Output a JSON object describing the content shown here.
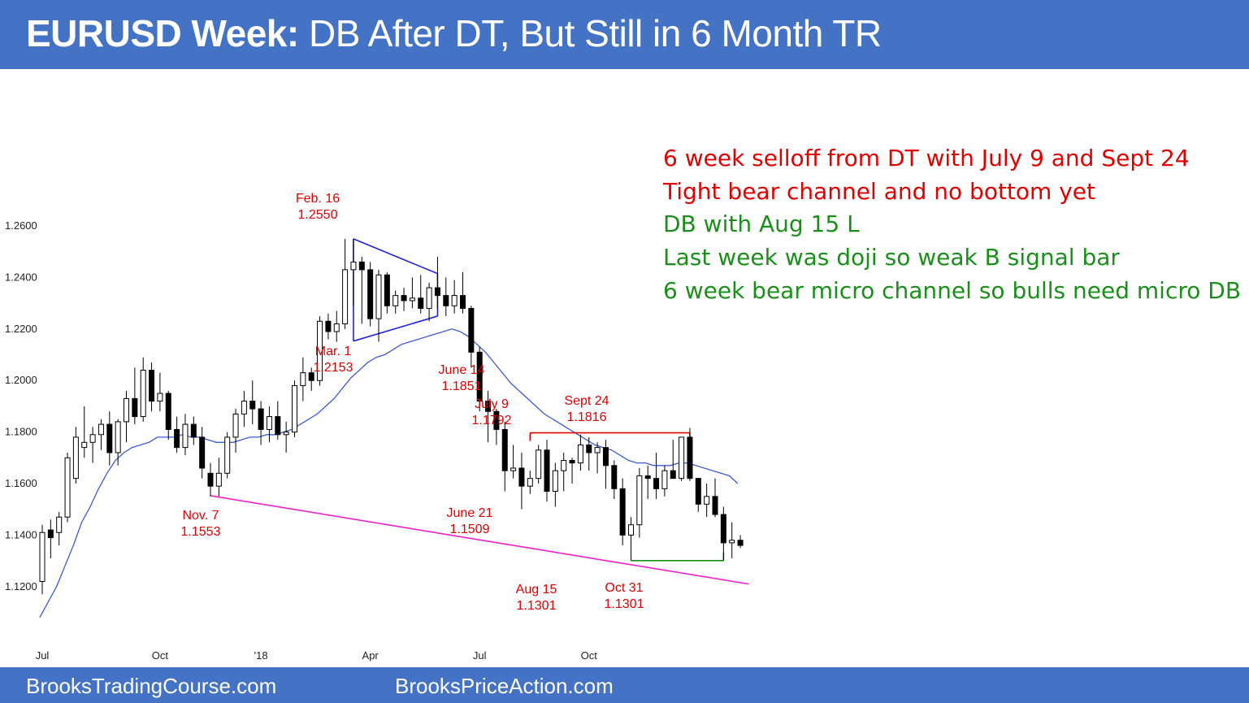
{
  "title": {
    "bold": "EURUSD Week:",
    "rest": " DB After DT, But Still in 6 Month TR"
  },
  "footer": {
    "left": "BrooksTradingCourse.com",
    "right": "BrooksPriceAction.com"
  },
  "colors": {
    "title_bar": "#4472c4",
    "red_text": "#e00000",
    "green_text": "#1a8f1a",
    "ema": "#3d5bd9",
    "wedge": "#2222dd",
    "trendline": "#ee22cc",
    "dt_line": "#e00000",
    "db_line": "#1a8f1a"
  },
  "notes": [
    {
      "text": "6 week selloff from DT with July 9 and Sept 24",
      "color": "red"
    },
    {
      "text": "Tight bear channel and no bottom yet",
      "color": "red"
    },
    {
      "text": "DB with Aug 15 L",
      "color": "green"
    },
    {
      "text": "Last week was doji so weak B signal bar",
      "color": "green"
    },
    {
      "text": "6 week bear micro channel so bulls need micro DB",
      "color": "green"
    }
  ],
  "chart_data": {
    "type": "candlestick",
    "interval": "weekly",
    "symbol": "EURUSD",
    "ylim": [
      1.1,
      1.27
    ],
    "yticks": [
      "1.2600",
      "1.2400",
      "1.2200",
      "1.2000",
      "1.1800",
      "1.1600",
      "1.1400",
      "1.1200"
    ],
    "ytick_values": [
      1.26,
      1.24,
      1.22,
      1.2,
      1.18,
      1.16,
      1.14,
      1.12
    ],
    "xticks": [
      {
        "label": "Jul",
        "week": 0
      },
      {
        "label": "Oct",
        "week": 14
      },
      {
        "label": "'18",
        "week": 26
      },
      {
        "label": "Apr",
        "week": 39
      },
      {
        "label": "Jul",
        "week": 52
      },
      {
        "label": "Oct",
        "week": 65
      }
    ],
    "candles": [
      {
        "o": 1.122,
        "h": 1.144,
        "l": 1.117,
        "c": 1.141
      },
      {
        "o": 1.142,
        "h": 1.146,
        "l": 1.131,
        "c": 1.139
      },
      {
        "o": 1.141,
        "h": 1.149,
        "l": 1.136,
        "c": 1.147
      },
      {
        "o": 1.147,
        "h": 1.172,
        "l": 1.145,
        "c": 1.17
      },
      {
        "o": 1.162,
        "h": 1.182,
        "l": 1.16,
        "c": 1.178
      },
      {
        "o": 1.174,
        "h": 1.19,
        "l": 1.17,
        "c": 1.176
      },
      {
        "o": 1.176,
        "h": 1.182,
        "l": 1.168,
        "c": 1.179
      },
      {
        "o": 1.179,
        "h": 1.185,
        "l": 1.173,
        "c": 1.183
      },
      {
        "o": 1.183,
        "h": 1.188,
        "l": 1.167,
        "c": 1.172
      },
      {
        "o": 1.172,
        "h": 1.185,
        "l": 1.167,
        "c": 1.184
      },
      {
        "o": 1.184,
        "h": 1.196,
        "l": 1.176,
        "c": 1.193
      },
      {
        "o": 1.193,
        "h": 1.205,
        "l": 1.183,
        "c": 1.186
      },
      {
        "o": 1.186,
        "h": 1.209,
        "l": 1.184,
        "c": 1.204
      },
      {
        "o": 1.204,
        "h": 1.207,
        "l": 1.188,
        "c": 1.192
      },
      {
        "o": 1.192,
        "h": 1.203,
        "l": 1.188,
        "c": 1.195
      },
      {
        "o": 1.195,
        "h": 1.196,
        "l": 1.177,
        "c": 1.181
      },
      {
        "o": 1.181,
        "h": 1.186,
        "l": 1.172,
        "c": 1.174
      },
      {
        "o": 1.174,
        "h": 1.187,
        "l": 1.171,
        "c": 1.183
      },
      {
        "o": 1.183,
        "h": 1.186,
        "l": 1.175,
        "c": 1.178
      },
      {
        "o": 1.178,
        "h": 1.182,
        "l": 1.162,
        "c": 1.166
      },
      {
        "o": 1.164,
        "h": 1.168,
        "l": 1.155,
        "c": 1.159
      },
      {
        "o": 1.159,
        "h": 1.17,
        "l": 1.155,
        "c": 1.164
      },
      {
        "o": 1.164,
        "h": 1.18,
        "l": 1.162,
        "c": 1.178
      },
      {
        "o": 1.178,
        "h": 1.189,
        "l": 1.172,
        "c": 1.187
      },
      {
        "o": 1.187,
        "h": 1.196,
        "l": 1.182,
        "c": 1.192
      },
      {
        "o": 1.192,
        "h": 1.2,
        "l": 1.183,
        "c": 1.189
      },
      {
        "o": 1.189,
        "h": 1.192,
        "l": 1.175,
        "c": 1.181
      },
      {
        "o": 1.181,
        "h": 1.19,
        "l": 1.176,
        "c": 1.186
      },
      {
        "o": 1.186,
        "h": 1.192,
        "l": 1.177,
        "c": 1.179
      },
      {
        "o": 1.179,
        "h": 1.184,
        "l": 1.172,
        "c": 1.18
      },
      {
        "o": 1.18,
        "h": 1.2,
        "l": 1.178,
        "c": 1.198
      },
      {
        "o": 1.198,
        "h": 1.209,
        "l": 1.192,
        "c": 1.203
      },
      {
        "o": 1.203,
        "h": 1.205,
        "l": 1.196,
        "c": 1.2
      },
      {
        "o": 1.2,
        "h": 1.225,
        "l": 1.198,
        "c": 1.223
      },
      {
        "o": 1.223,
        "h": 1.226,
        "l": 1.216,
        "c": 1.219
      },
      {
        "o": 1.219,
        "h": 1.227,
        "l": 1.215,
        "c": 1.222
      },
      {
        "o": 1.222,
        "h": 1.255,
        "l": 1.22,
        "c": 1.243
      },
      {
        "o": 1.243,
        "h": 1.255,
        "l": 1.229,
        "c": 1.246
      },
      {
        "o": 1.246,
        "h": 1.248,
        "l": 1.222,
        "c": 1.243
      },
      {
        "o": 1.243,
        "h": 1.246,
        "l": 1.221,
        "c": 1.224
      },
      {
        "o": 1.224,
        "h": 1.243,
        "l": 1.215,
        "c": 1.241
      },
      {
        "o": 1.241,
        "h": 1.242,
        "l": 1.226,
        "c": 1.229
      },
      {
        "o": 1.229,
        "h": 1.235,
        "l": 1.226,
        "c": 1.233
      },
      {
        "o": 1.233,
        "h": 1.236,
        "l": 1.227,
        "c": 1.231
      },
      {
        "o": 1.231,
        "h": 1.24,
        "l": 1.228,
        "c": 1.232
      },
      {
        "o": 1.232,
        "h": 1.241,
        "l": 1.226,
        "c": 1.228
      },
      {
        "o": 1.228,
        "h": 1.238,
        "l": 1.223,
        "c": 1.236
      },
      {
        "o": 1.236,
        "h": 1.248,
        "l": 1.228,
        "c": 1.233
      },
      {
        "o": 1.233,
        "h": 1.24,
        "l": 1.225,
        "c": 1.229
      },
      {
        "o": 1.229,
        "h": 1.239,
        "l": 1.226,
        "c": 1.233
      },
      {
        "o": 1.233,
        "h": 1.242,
        "l": 1.226,
        "c": 1.228
      },
      {
        "o": 1.228,
        "h": 1.229,
        "l": 1.205,
        "c": 1.211
      },
      {
        "o": 1.211,
        "h": 1.213,
        "l": 1.188,
        "c": 1.192
      },
      {
        "o": 1.192,
        "h": 1.196,
        "l": 1.176,
        "c": 1.188
      },
      {
        "o": 1.188,
        "h": 1.189,
        "l": 1.175,
        "c": 1.181
      },
      {
        "o": 1.181,
        "h": 1.184,
        "l": 1.157,
        "c": 1.165
      },
      {
        "o": 1.165,
        "h": 1.175,
        "l": 1.162,
        "c": 1.166
      },
      {
        "o": 1.166,
        "h": 1.172,
        "l": 1.15,
        "c": 1.159
      },
      {
        "o": 1.159,
        "h": 1.165,
        "l": 1.156,
        "c": 1.162
      },
      {
        "o": 1.162,
        "h": 1.175,
        "l": 1.16,
        "c": 1.173
      },
      {
        "o": 1.173,
        "h": 1.177,
        "l": 1.153,
        "c": 1.157
      },
      {
        "o": 1.157,
        "h": 1.168,
        "l": 1.151,
        "c": 1.165
      },
      {
        "o": 1.165,
        "h": 1.172,
        "l": 1.157,
        "c": 1.169
      },
      {
        "o": 1.169,
        "h": 1.17,
        "l": 1.16,
        "c": 1.168
      },
      {
        "o": 1.168,
        "h": 1.179,
        "l": 1.165,
        "c": 1.175
      },
      {
        "o": 1.175,
        "h": 1.178,
        "l": 1.165,
        "c": 1.172
      },
      {
        "o": 1.172,
        "h": 1.176,
        "l": 1.164,
        "c": 1.174
      },
      {
        "o": 1.174,
        "h": 1.177,
        "l": 1.158,
        "c": 1.167
      },
      {
        "o": 1.167,
        "h": 1.169,
        "l": 1.154,
        "c": 1.158
      },
      {
        "o": 1.158,
        "h": 1.162,
        "l": 1.136,
        "c": 1.14
      },
      {
        "o": 1.14,
        "h": 1.147,
        "l": 1.1301,
        "c": 1.144
      },
      {
        "o": 1.144,
        "h": 1.166,
        "l": 1.139,
        "c": 1.163
      },
      {
        "o": 1.163,
        "h": 1.167,
        "l": 1.154,
        "c": 1.162
      },
      {
        "o": 1.162,
        "h": 1.172,
        "l": 1.154,
        "c": 1.158
      },
      {
        "o": 1.158,
        "h": 1.167,
        "l": 1.155,
        "c": 1.165
      },
      {
        "o": 1.165,
        "h": 1.177,
        "l": 1.162,
        "c": 1.162
      },
      {
        "o": 1.162,
        "h": 1.178,
        "l": 1.161,
        "c": 1.178
      },
      {
        "o": 1.178,
        "h": 1.1816,
        "l": 1.161,
        "c": 1.162
      },
      {
        "o": 1.162,
        "h": 1.162,
        "l": 1.149,
        "c": 1.152
      },
      {
        "o": 1.152,
        "h": 1.16,
        "l": 1.147,
        "c": 1.155
      },
      {
        "o": 1.155,
        "h": 1.162,
        "l": 1.147,
        "c": 1.148
      },
      {
        "o": 1.148,
        "h": 1.151,
        "l": 1.1301,
        "c": 1.137
      },
      {
        "o": 1.137,
        "h": 1.145,
        "l": 1.131,
        "c": 1.138
      },
      {
        "o": 1.138,
        "h": 1.14,
        "l": 1.135,
        "c": 1.136
      }
    ],
    "ema20": [
      1.108,
      1.114,
      1.12,
      1.128,
      1.136,
      1.145,
      1.151,
      1.158,
      1.164,
      1.169,
      1.172,
      1.174,
      1.175,
      1.176,
      1.178,
      1.178,
      1.178,
      1.179,
      1.178,
      1.178,
      1.177,
      1.176,
      1.176,
      1.176,
      1.177,
      1.178,
      1.178,
      1.179,
      1.179,
      1.18,
      1.181,
      1.183,
      1.185,
      1.187,
      1.19,
      1.193,
      1.197,
      1.201,
      1.204,
      1.207,
      1.209,
      1.21,
      1.212,
      1.214,
      1.215,
      1.216,
      1.217,
      1.218,
      1.219,
      1.22,
      1.219,
      1.217,
      1.214,
      1.211,
      1.207,
      1.203,
      1.199,
      1.196,
      1.193,
      1.19,
      1.187,
      1.185,
      1.183,
      1.181,
      1.179,
      1.177,
      1.175,
      1.174,
      1.173,
      1.171,
      1.169,
      1.168,
      1.168,
      1.167,
      1.167,
      1.167,
      1.168,
      1.168,
      1.167,
      1.166,
      1.165,
      1.164,
      1.163,
      1.16
    ],
    "annotations": [
      {
        "id": "feb16",
        "lines": [
          "Feb. 16",
          "1.2550"
        ],
        "week": 36
      },
      {
        "id": "mar1",
        "lines": [
          "Mar. 1",
          "1.2153"
        ],
        "week": 39
      },
      {
        "id": "nov7",
        "lines": [
          "Nov. 7",
          "1.1553"
        ],
        "week": 20
      },
      {
        "id": "june14",
        "lines": [
          "June 14",
          "1.1851"
        ],
        "week": 55
      },
      {
        "id": "july9",
        "lines": [
          "July 9",
          "1.1792"
        ],
        "week": 59
      },
      {
        "id": "june21",
        "lines": [
          "June 21",
          "1.1509"
        ],
        "week": 57
      },
      {
        "id": "sept24",
        "lines": [
          "Sept 24",
          "1.1816"
        ],
        "week": 77
      },
      {
        "id": "aug15",
        "lines": [
          "Aug 15",
          "1.1301"
        ],
        "week": 70
      },
      {
        "id": "oct31",
        "lines": [
          "Oct 31",
          "1.1301"
        ],
        "week": 81
      }
    ],
    "lines": {
      "trendline": [
        {
          "week": 20,
          "price": 1.1553
        },
        {
          "week": 84,
          "price": 1.121
        }
      ],
      "wedge_top": [
        {
          "week": 37,
          "price": 1.255
        },
        {
          "week": 47,
          "price": 1.2415
        }
      ],
      "wedge_bottom": [
        {
          "week": 37,
          "price": 1.2153
        },
        {
          "week": 47,
          "price": 1.225
        }
      ],
      "double_top": [
        {
          "week": 58,
          "price": 1.1797
        },
        {
          "week": 77,
          "price": 1.1797
        }
      ],
      "double_bottom": [
        {
          "week": 70,
          "price": 1.1301
        },
        {
          "week": 81,
          "price": 1.1301
        }
      ]
    }
  }
}
